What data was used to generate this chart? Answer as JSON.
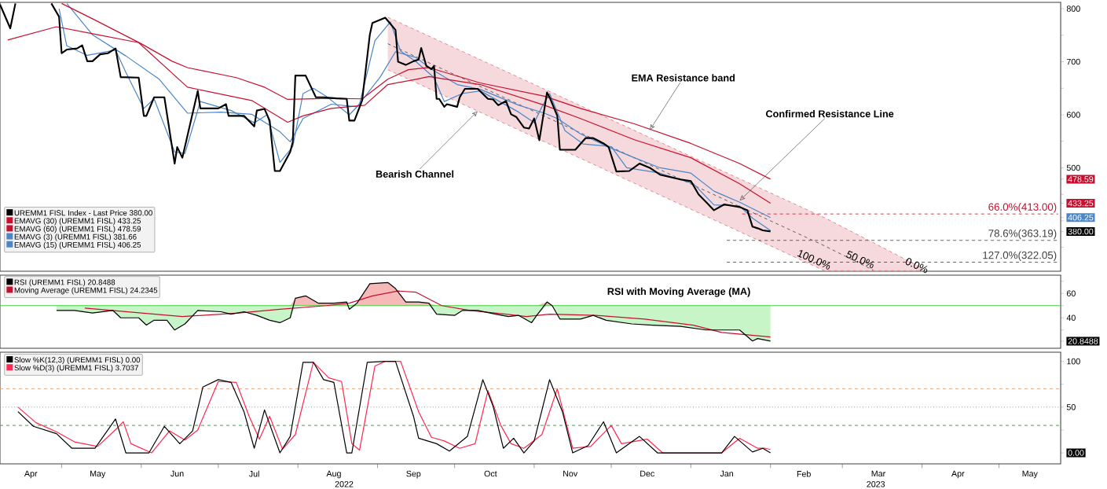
{
  "chart_data": [
    {
      "type": "line",
      "xlim": [
        "2022-04-07",
        "2023-05-25"
      ],
      "ylim": [
        305,
        812
      ],
      "tick_labels": "y",
      "legend": "bottom left",
      "yticks": [
        {
          "value": 350,
          "label": null
        },
        {
          "value": 400,
          "label": null
        },
        {
          "value": 450,
          "label": null
        },
        500,
        {
          "value": 550,
          "label": null
        },
        600,
        {
          "value": 650,
          "label": null
        },
        700,
        {
          "value": 750,
          "label": null
        },
        800,
        {
          "value": 478.59,
          "label": "478.59"
        },
        {
          "value": 433.25,
          "label": "433.25"
        },
        {
          "value": 406.25,
          "label": "406.25"
        },
        {
          "value": 380,
          "label": "380.00"
        }
      ],
      "series": [
        {
          "name": "UREMM1 FISL Index - Last Price 380.00",
          "color": "#000000",
          "x": [
            "2022-04-07",
            "2022-04-11",
            "2022-04-13",
            "2022-04-20",
            "2022-04-27",
            "2022-04-30",
            "2022-05-01",
            "2022-05-03",
            "2022-05-07",
            "2022-05-09",
            "2022-05-11",
            "2022-05-13",
            "2022-05-16",
            "2022-05-19",
            "2022-05-22",
            "2022-05-24",
            "2022-05-31",
            "2022-06-02",
            "2022-06-03",
            "2022-06-06",
            "2022-06-10",
            "2022-06-14",
            "2022-06-15",
            "2022-06-17",
            "2022-06-23",
            "2022-06-24",
            "2022-07-01",
            "2022-07-04",
            "2022-07-05",
            "2022-07-11",
            "2022-07-15",
            "2022-07-16",
            "2022-07-19",
            "2022-07-21",
            "2022-07-23",
            "2022-07-25",
            "2022-07-29",
            "2022-07-30",
            "2022-07-31",
            "2022-08-04",
            "2022-08-08",
            "2022-08-11",
            "2022-08-16",
            "2022-08-20",
            "2022-08-21",
            "2022-08-23",
            "2022-08-26",
            "2022-08-29",
            "2022-08-30",
            "2022-09-04",
            "2022-09-08",
            "2022-09-09",
            "2022-09-12",
            "2022-09-15",
            "2022-09-17",
            "2022-09-18",
            "2022-09-20",
            "2022-09-22",
            "2022-09-23",
            "2022-09-24",
            "2022-09-25",
            "2022-09-27",
            "2022-09-28",
            "2022-10-02",
            "2022-10-03",
            "2022-10-05",
            "2022-10-10",
            "2022-10-14",
            "2022-10-16",
            "2022-10-18",
            "2022-10-21",
            "2022-10-23",
            "2022-10-25",
            "2022-10-28",
            "2022-10-30",
            "2022-11-01",
            "2022-11-03",
            "2022-11-06",
            "2022-11-07",
            "2022-11-10",
            "2022-11-11",
            "2022-11-17",
            "2022-11-21",
            "2022-11-24",
            "2022-11-28",
            "2022-11-30",
            "2022-12-03",
            "2022-12-08",
            "2022-12-12",
            "2022-12-16",
            "2022-12-20",
            "2022-12-28",
            "2023-01-01",
            "2023-01-04",
            "2023-01-07",
            "2023-01-10",
            "2023-01-14",
            "2023-01-20",
            "2023-01-23",
            "2023-01-25",
            "2023-01-27",
            "2023-01-29",
            "2023-02-01"
          ],
          "values": [
            808,
            763,
            810,
            null,
            810,
            785,
            716,
            723,
            725,
            731,
            701,
            701,
            714,
            716,
            725,
            671,
            670,
            598,
            598,
            633,
            633,
            508,
            539,
            519,
            645,
            612,
            612,
            620,
            598,
            598,
            578,
            608,
            611,
            589,
            494,
            494,
            530,
            549,
            674,
            674,
            633,
            633,
            631,
            630,
            589,
            589,
            627,
            751,
            773,
            783,
            760,
            700,
            694,
            701,
            704,
            726,
            692,
            686,
            692,
            630,
            630,
            615,
            620,
            615,
            633,
            649,
            649,
            630,
            629,
            618,
            626,
            601,
            596,
            576,
            574,
            593,
            552,
            642,
            633,
            598,
            534,
            534,
            556,
            556,
            546,
            539,
            493,
            494,
            508,
            500,
            487,
            478,
            475,
            450,
            435,
            420,
            431,
            426,
            420,
            389,
            386,
            382,
            380
          ]
        },
        {
          "name": "EMAVG (30) (UREMM1 FISL) 433.25",
          "color": "#c8102e",
          "x": [
            "2022-04-10",
            "2022-04-29",
            "2022-05-13",
            "2022-05-31",
            "2022-06-19",
            "2022-07-14",
            "2022-07-28",
            "2022-08-03",
            "2022-08-14",
            "2022-08-27",
            "2022-09-05",
            "2022-09-16",
            "2022-09-21",
            "2022-10-11",
            "2022-11-05",
            "2022-11-19",
            "2022-12-10",
            "2023-01-01",
            "2023-01-20",
            "2023-02-01"
          ],
          "values": [
            741,
            766,
            753,
            736,
            652,
            627,
            586,
            598,
            612,
            618,
            657,
            667,
            672,
            657,
            618,
            593,
            553,
            519,
            470,
            433.25
          ]
        },
        {
          "name": "EMAVG (60) (UREMM1 FISL) 478.59",
          "color": "#c8102e",
          "x": [
            "2022-05-01",
            "2022-05-13",
            "2022-06-01",
            "2022-06-13",
            "2022-06-19",
            "2022-07-08",
            "2022-07-19",
            "2022-07-28",
            "2022-08-14",
            "2022-08-26",
            "2022-09-05",
            "2022-09-13",
            "2022-09-21",
            "2022-10-11",
            "2022-11-05",
            "2022-11-19",
            "2022-12-10",
            "2023-01-01",
            "2023-01-20",
            "2023-02-01"
          ],
          "values": [
            810,
            781,
            734,
            701,
            689,
            670,
            652,
            629,
            631,
            630,
            667,
            685,
            689,
            660,
            635,
            612,
            583,
            546,
            508,
            478.59
          ]
        },
        {
          "name": "EMAVG (3) (UREMM1 FISL) 381.66",
          "color": "#4a86c8",
          "x": [
            "2022-04-30",
            "2022-05-03",
            "2022-05-11",
            "2022-05-22",
            "2022-05-26",
            "2022-06-02",
            "2022-06-06",
            "2022-06-14",
            "2022-06-18",
            "2022-06-24",
            "2022-07-06",
            "2022-07-15",
            "2022-07-20",
            "2022-07-25",
            "2022-07-30",
            "2022-08-03",
            "2022-08-07",
            "2022-08-12",
            "2022-08-21",
            "2022-08-25",
            "2022-08-31",
            "2022-09-06",
            "2022-09-10",
            "2022-09-16",
            "2022-09-23",
            "2022-09-27",
            "2022-10-04",
            "2022-10-11",
            "2022-10-26",
            "2022-11-01",
            "2022-11-04",
            "2022-11-07",
            "2022-11-13",
            "2022-11-20",
            "2022-12-01",
            "2022-12-07",
            "2022-12-20",
            "2023-01-02",
            "2023-01-10",
            "2023-01-20",
            "2023-01-25",
            "2023-02-01"
          ],
          "values": [
            800,
            730,
            712,
            722,
            680,
            612,
            630,
            530,
            527,
            625,
            608,
            585,
            600,
            510,
            540,
            640,
            650,
            635,
            600,
            620,
            740,
            775,
            720,
            700,
            670,
            625,
            640,
            645,
            605,
            585,
            615,
            640,
            570,
            545,
            540,
            500,
            490,
            470,
            430,
            428,
            405,
            381.66
          ]
        },
        {
          "name": "EMAVG (15) (UREMM1 FISL) 406.25",
          "color": "#4a86c8",
          "x": [
            "2022-05-03",
            "2022-05-13",
            "2022-05-26",
            "2022-06-08",
            "2022-06-19",
            "2022-07-02",
            "2022-07-14",
            "2022-07-25",
            "2022-07-29",
            "2022-08-03",
            "2022-08-14",
            "2022-08-24",
            "2022-09-02",
            "2022-09-08",
            "2022-09-16",
            "2022-09-22",
            "2022-10-02",
            "2022-10-11",
            "2022-10-26",
            "2022-11-05",
            "2022-11-10",
            "2022-11-19",
            "2022-11-30",
            "2022-12-10",
            "2022-12-20",
            "2023-01-01",
            "2023-01-10",
            "2023-01-20",
            "2023-02-01"
          ],
          "values": [
            810,
            751,
            711,
            667,
            603,
            605,
            601,
            568,
            549,
            593,
            620,
            615,
            671,
            719,
            708,
            686,
            657,
            648,
            618,
            603,
            593,
            564,
            539,
            519,
            500,
            490,
            456,
            435,
            406.25
          ]
        },
        {
          "color": "#404040",
          "line_style": "dashed",
          "x": [
            "2022-09-05",
            "2023-02-22",
            "2023-03-13",
            "2023-04-01"
          ],
          "values": [
            734,
            353,
            307,
            null
          ],
          "lower": [
            685,
            306,
            306,
            306
          ],
          "upper": [
            784,
            406,
            359,
            311
          ]
        },
        {
          "color": "#c8102e",
          "line_style": "dashed",
          "x": [
            "2023-01-21",
            "2023-05-24"
          ],
          "values": [
            413,
            413
          ]
        },
        {
          "color": "#404040",
          "line_style": "dashed",
          "x": [
            "2023-01-15",
            "2023-05-24"
          ],
          "values": [
            363.19,
            363.19
          ]
        },
        {
          "color": "#404040",
          "line_style": "dashed",
          "x": [
            "2023-01-15",
            "2023-05-24"
          ],
          "values": [
            322.05,
            322.05
          ]
        }
      ],
      "annotations": [
        {
          "text": "EMA Resistance band",
          "x": "2022-12-16",
          "y": 571
        },
        {
          "text": "Confirmed Resistance Line",
          "x": "2023-01-20",
          "y": 438
        },
        {
          "text": "Bearish Channel",
          "x": "2022-10-10",
          "y": 607
        },
        {
          "text": "100.0%",
          "x": "2023-02-18",
          "y": 327
        },
        {
          "text": "50.0%",
          "x": "2023-03-08",
          "y": 327
        },
        {
          "text": "0.0%",
          "x": "2023-03-30",
          "y": 316
        },
        {
          "text": "66.0%(413.00)",
          "x": "2023-05-24",
          "y": 413
        },
        {
          "text": "78.6%(363.19)",
          "x": "2023-05-24",
          "y": 363.19
        },
        {
          "text": "127.0%(322.05)",
          "x": "2023-05-24",
          "y": 322.05
        }
      ]
    },
    {
      "type": "line",
      "title": "RSI with Moving Average (MA)",
      "xlim": [
        "2022-04-07",
        "2023-05-25"
      ],
      "ylim": [
        15,
        75
      ],
      "tick_labels": "y",
      "legend": "top left",
      "yticks": [
        {
          "value": 30,
          "label": null
        },
        40,
        {
          "value": 50,
          "label": null
        },
        60,
        {
          "value": 70,
          "label": null
        },
        {
          "value": 20.8488,
          "label": "20.8488"
        }
      ],
      "ref_lines": [
        {
          "axis": "y",
          "value": 50,
          "color": "#33cc33"
        }
      ],
      "series": [
        {
          "name": "RSI (UREMM1 FISL) 20.8488",
          "color": "#000000",
          "x": [
            "2022-04-29",
            "2022-05-06",
            "2022-05-13",
            "2022-05-21",
            "2022-05-24",
            "2022-05-31",
            "2022-06-03",
            "2022-06-06",
            "2022-06-11",
            "2022-06-14",
            "2022-06-18",
            "2022-06-23",
            "2022-07-02",
            "2022-07-06",
            "2022-07-11",
            "2022-07-16",
            "2022-07-21",
            "2022-07-25",
            "2022-07-29",
            "2022-07-31",
            "2022-08-04",
            "2022-08-09",
            "2022-08-15",
            "2022-08-20",
            "2022-08-21",
            "2022-08-24",
            "2022-08-29",
            "2022-09-05",
            "2022-09-08",
            "2022-09-12",
            "2022-09-17",
            "2022-09-21",
            "2022-09-24",
            "2022-10-01",
            "2022-10-04",
            "2022-10-10",
            "2022-10-17",
            "2022-10-22",
            "2022-10-26",
            "2022-10-31",
            "2022-11-02",
            "2022-11-06",
            "2022-11-08",
            "2022-11-11",
            "2022-11-19",
            "2022-11-24",
            "2022-11-29",
            "2022-12-09",
            "2022-12-17",
            "2022-12-28",
            "2023-01-07",
            "2023-01-14",
            "2023-01-20",
            "2023-01-25",
            "2023-01-27",
            "2023-02-01"
          ],
          "values": [
            46,
            46,
            44,
            46,
            40,
            40,
            34,
            38,
            38,
            30,
            35,
            46,
            45,
            43,
            45,
            42,
            38,
            36,
            40,
            56,
            58,
            52,
            52,
            53,
            47,
            52,
            68,
            69,
            64,
            53,
            53,
            52,
            43,
            42,
            46,
            46,
            43,
            41,
            42,
            36,
            42,
            53,
            50,
            39,
            39,
            42,
            38,
            35,
            34,
            33,
            30,
            30,
            30,
            21,
            23,
            20.8488
          ]
        },
        {
          "name": "Moving Average (UREMM1 FISL) 24.2345",
          "color": "#c8102e",
          "x": [
            "2022-05-10",
            "2022-06-01",
            "2022-06-17",
            "2022-07-09",
            "2022-07-25",
            "2022-08-12",
            "2022-08-21",
            "2022-08-30",
            "2022-09-09",
            "2022-09-16",
            "2022-09-26",
            "2022-10-07",
            "2022-10-21",
            "2022-10-29",
            "2022-11-07",
            "2022-11-25",
            "2022-12-14",
            "2023-01-02",
            "2023-01-13",
            "2023-02-01"
          ],
          "values": [
            48,
            44,
            41,
            44,
            47,
            50,
            52,
            58,
            62,
            61,
            50,
            46,
            43,
            41,
            43,
            42,
            39,
            34,
            28,
            24.2345
          ]
        },
        {
          "color": "#f7b8b8",
          "x": [
            "2022-04-29",
            "2022-05-06",
            "2022-05-13",
            "2022-05-21",
            "2022-05-24",
            "2022-05-31",
            "2022-06-03",
            "2022-06-06",
            "2022-06-11",
            "2022-06-14",
            "2022-06-18",
            "2022-06-23",
            "2022-07-02",
            "2022-07-06",
            "2022-07-11",
            "2022-07-16",
            "2022-07-21",
            "2022-07-25",
            "2022-07-29",
            "2022-07-31",
            "2022-08-04",
            "2022-08-09",
            "2022-08-15",
            "2022-08-20",
            "2022-08-21",
            "2022-08-24",
            "2022-08-29",
            "2022-09-05",
            "2022-09-08",
            "2022-09-12",
            "2022-09-17",
            "2022-09-21",
            "2022-09-24",
            "2022-10-01",
            "2022-10-04",
            "2022-10-10",
            "2022-10-17",
            "2022-10-22",
            "2022-10-26",
            "2022-10-31",
            "2022-11-02",
            "2022-11-06",
            "2022-11-08",
            "2022-11-11",
            "2022-11-19",
            "2022-11-24",
            "2022-11-29",
            "2022-12-09",
            "2022-12-17",
            "2022-12-28",
            "2023-01-07",
            "2023-01-14",
            "2023-01-20",
            "2023-01-25",
            "2023-01-27",
            "2023-02-01"
          ],
          "values": [
            null,
            null,
            null,
            null,
            null,
            null,
            null,
            null,
            null,
            null,
            null,
            null,
            null,
            null,
            null,
            null,
            null,
            null,
            null,
            null,
            null,
            null,
            null,
            null,
            null,
            null,
            null,
            null,
            null,
            null,
            null,
            null,
            null,
            null,
            null,
            null,
            null,
            null,
            null,
            null,
            null,
            null,
            null,
            null,
            null,
            null,
            null,
            null,
            null,
            null,
            null,
            null,
            null,
            null,
            null,
            null
          ],
          "lower": [
            50,
            50,
            50,
            50,
            50,
            50,
            50,
            50,
            50,
            50,
            50,
            50,
            50,
            50,
            50,
            50,
            50,
            50,
            50,
            50,
            50,
            50,
            50,
            50,
            50,
            50,
            50,
            50,
            50,
            50,
            50,
            50,
            50,
            50,
            50,
            50,
            50,
            50,
            50,
            50,
            50,
            50,
            50,
            50,
            50,
            50,
            50,
            50,
            50,
            50,
            50,
            50,
            50,
            50,
            50,
            50
          ],
          "upper": [
            50,
            50,
            50,
            50,
            50,
            50,
            50,
            50,
            50,
            50,
            50,
            50,
            50,
            50,
            50,
            50,
            50,
            50,
            50,
            56,
            58,
            52,
            52,
            53,
            50,
            52,
            68,
            69,
            64,
            53,
            53,
            52,
            50,
            50,
            50,
            50,
            50,
            50,
            50,
            50,
            50,
            53,
            50,
            50,
            50,
            50,
            50,
            50,
            50,
            50,
            50,
            50,
            50,
            50,
            50,
            50
          ]
        },
        {
          "color": "#c8f5c8",
          "x": [
            "2022-04-29",
            "2022-05-06",
            "2022-05-13",
            "2022-05-21",
            "2022-05-24",
            "2022-05-31",
            "2022-06-03",
            "2022-06-06",
            "2022-06-11",
            "2022-06-14",
            "2022-06-18",
            "2022-06-23",
            "2022-07-02",
            "2022-07-06",
            "2022-07-11",
            "2022-07-16",
            "2022-07-21",
            "2022-07-25",
            "2022-07-29",
            "2022-07-31",
            "2022-08-04",
            "2022-08-09",
            "2022-08-15",
            "2022-08-20",
            "2022-08-21",
            "2022-08-24",
            "2022-08-29",
            "2022-09-05",
            "2022-09-08",
            "2022-09-12",
            "2022-09-17",
            "2022-09-21",
            "2022-09-24",
            "2022-10-01",
            "2022-10-04",
            "2022-10-10",
            "2022-10-17",
            "2022-10-22",
            "2022-10-26",
            "2022-10-31",
            "2022-11-02",
            "2022-11-06",
            "2022-11-08",
            "2022-11-11",
            "2022-11-19",
            "2022-11-24",
            "2022-11-29",
            "2022-12-09",
            "2022-12-17",
            "2022-12-28",
            "2023-01-07",
            "2023-01-14",
            "2023-01-20",
            "2023-01-25",
            "2023-01-27",
            "2023-02-01"
          ],
          "values": [
            null,
            null,
            null,
            null,
            null,
            null,
            null,
            null,
            null,
            null,
            null,
            null,
            null,
            null,
            null,
            null,
            null,
            null,
            null,
            null,
            null,
            null,
            null,
            null,
            null,
            null,
            null,
            null,
            null,
            null,
            null,
            null,
            null,
            null,
            null,
            null,
            null,
            null,
            null,
            null,
            null,
            null,
            null,
            null,
            null,
            null,
            null,
            null,
            null,
            null,
            null,
            null,
            null,
            null,
            null,
            null
          ],
          "lower": [
            46,
            46,
            44,
            46,
            40,
            40,
            34,
            38,
            38,
            30,
            35,
            46,
            45,
            43,
            45,
            42,
            38,
            36,
            40,
            50,
            50,
            50,
            50,
            50,
            47,
            50,
            50,
            50,
            50,
            50,
            50,
            50,
            43,
            42,
            46,
            46,
            43,
            41,
            42,
            36,
            42,
            50,
            50,
            39,
            39,
            42,
            38,
            35,
            34,
            33,
            30,
            30,
            30,
            21,
            23,
            20.8488
          ],
          "upper": [
            50,
            50,
            50,
            50,
            50,
            50,
            50,
            50,
            50,
            50,
            50,
            50,
            50,
            50,
            50,
            50,
            50,
            50,
            50,
            50,
            50,
            50,
            50,
            50,
            50,
            50,
            50,
            50,
            50,
            50,
            50,
            50,
            50,
            50,
            50,
            50,
            50,
            50,
            50,
            50,
            50,
            50,
            50,
            50,
            50,
            50,
            50,
            50,
            50,
            50,
            50,
            50,
            50,
            50,
            50,
            50
          ]
        }
      ]
    },
    {
      "type": "line",
      "xlim": [
        "2022-04-07",
        "2023-05-25"
      ],
      "ylim": [
        -12,
        110
      ],
      "legend": "top left",
      "yticks": [
        {
          "value": 25,
          "label": null
        },
        50,
        {
          "value": 75,
          "label": null
        },
        100,
        {
          "value": 0,
          "label": "0.00"
        }
      ],
      "xticks": [
        {
          "value": "2022-04-19",
          "label": "Apr"
        },
        {
          "value": "2022-05-01",
          "label": null
        },
        {
          "value": "2022-05-15",
          "label": "May"
        },
        {
          "value": "2022-06-01",
          "label": null
        },
        {
          "value": "2022-06-15",
          "label": "Jun"
        },
        {
          "value": "2022-07-01",
          "label": null
        },
        {
          "value": "2022-07-15",
          "label": "Jul"
        },
        {
          "value": "2022-08-01",
          "label": null
        },
        {
          "value": "2022-08-15",
          "label": "Aug"
        },
        {
          "value": "2022-09-01",
          "label": null
        },
        {
          "value": "2022-09-15",
          "label": "Sep"
        },
        {
          "value": "2022-10-01",
          "label": null
        },
        {
          "value": "2022-10-15",
          "label": "Oct"
        },
        {
          "value": "2022-11-01",
          "label": null
        },
        {
          "value": "2022-11-15",
          "label": "Nov"
        },
        {
          "value": "2022-12-01",
          "label": null
        },
        {
          "value": "2022-12-15",
          "label": "Dec"
        },
        {
          "value": "2023-01-01",
          "label": null
        },
        {
          "value": "2023-01-15",
          "label": "Jan"
        },
        {
          "value": "2023-02-01",
          "label": null
        },
        {
          "value": "2023-02-14",
          "label": "Feb"
        },
        {
          "value": "2023-03-01",
          "label": null
        },
        {
          "value": "2023-03-15",
          "label": "Mar"
        },
        {
          "value": "2023-04-01",
          "label": null
        },
        {
          "value": "2023-04-15",
          "label": "Apr"
        },
        {
          "value": "2023-05-01",
          "label": null
        },
        {
          "value": "2023-05-13",
          "label": "May"
        }
      ],
      "ref_lines": [
        {
          "axis": "y",
          "value": 70,
          "color": "#f4a582",
          "line_style": "dashed"
        },
        {
          "axis": "y",
          "value": 50,
          "color": "#5f9ea0",
          "line_style": "dotted"
        },
        {
          "axis": "y",
          "value": 30,
          "color": "#2ca02c",
          "line_style": "dashed"
        }
      ],
      "series": [
        {
          "name": "Slow %K(12,3) (UREMM1 FISL) 0.00",
          "color": "#000000",
          "x": [
            "2022-04-14",
            "2022-04-20",
            "2022-04-29",
            "2022-05-05",
            "2022-05-14",
            "2022-05-22",
            "2022-05-26",
            "2022-06-04",
            "2022-06-10",
            "2022-06-16",
            "2022-06-21",
            "2022-06-25",
            "2022-07-01",
            "2022-07-06",
            "2022-07-11",
            "2022-07-15",
            "2022-07-19",
            "2022-07-25",
            "2022-07-29",
            "2022-08-03",
            "2022-08-07",
            "2022-08-11",
            "2022-08-15",
            "2022-08-20",
            "2022-08-22",
            "2022-08-28",
            "2022-09-04",
            "2022-09-08",
            "2022-09-15",
            "2022-09-17",
            "2022-09-24",
            "2022-09-29",
            "2022-10-06",
            "2022-10-12",
            "2022-10-16",
            "2022-10-20",
            "2022-10-24",
            "2022-10-28",
            "2022-11-01",
            "2022-11-07",
            "2022-11-12",
            "2022-11-16",
            "2022-11-22",
            "2022-11-28",
            "2022-12-03",
            "2022-12-12",
            "2022-12-19",
            "2023-01-13",
            "2023-01-18",
            "2023-01-25",
            "2023-01-29",
            "2023-02-01"
          ],
          "values": [
            45,
            29,
            21,
            5,
            5,
            37,
            0,
            0,
            29,
            10,
            24,
            72,
            80,
            77,
            45,
            5,
            47,
            0,
            18,
            99,
            99,
            80,
            77,
            0,
            0,
            99,
            100,
            100,
            40,
            16,
            10,
            2,
            18,
            80,
            51,
            5,
            16,
            0,
            13,
            80,
            45,
            0,
            8,
            34,
            0,
            18,
            0,
            0,
            18,
            1,
            5,
            0
          ]
        },
        {
          "name": "Slow %D(3) (UREMM1 FISL) 3.7037",
          "color": "#ff2850",
          "x": [
            "2022-04-14",
            "2022-04-21",
            "2022-04-29",
            "2022-05-06",
            "2022-05-15",
            "2022-05-23",
            "2022-05-25",
            "2022-05-28",
            "2022-06-05",
            "2022-06-12",
            "2022-06-18",
            "2022-06-23",
            "2022-07-01",
            "2022-07-08",
            "2022-07-13",
            "2022-07-17",
            "2022-07-21",
            "2022-07-26",
            "2022-07-31",
            "2022-08-07",
            "2022-08-13",
            "2022-08-18",
            "2022-08-22",
            "2022-08-25",
            "2022-08-31",
            "2022-09-04",
            "2022-09-10",
            "2022-09-17",
            "2022-09-22",
            "2022-09-27",
            "2022-10-03",
            "2022-10-09",
            "2022-10-14",
            "2022-10-19",
            "2022-10-23",
            "2022-10-28",
            "2022-11-04",
            "2022-11-10",
            "2022-11-16",
            "2022-11-23",
            "2022-12-01",
            "2022-12-05",
            "2022-12-15",
            "2022-12-21",
            "2023-01-13",
            "2023-01-20",
            "2023-01-27",
            "2023-01-30",
            "2023-02-01"
          ],
          "values": [
            50,
            33,
            23,
            12,
            7,
            28,
            34,
            10,
            0,
            24,
            14,
            25,
            78,
            77,
            40,
            15,
            40,
            4,
            20,
            99,
            82,
            78,
            10,
            3,
            95,
            100,
            100,
            45,
            17,
            13,
            5,
            10,
            68,
            30,
            10,
            5,
            20,
            70,
            5,
            7,
            30,
            10,
            15,
            0,
            0,
            16,
            5,
            5,
            3.7037
          ]
        }
      ],
      "annotations": [
        "2022",
        "2023"
      ]
    }
  ]
}
